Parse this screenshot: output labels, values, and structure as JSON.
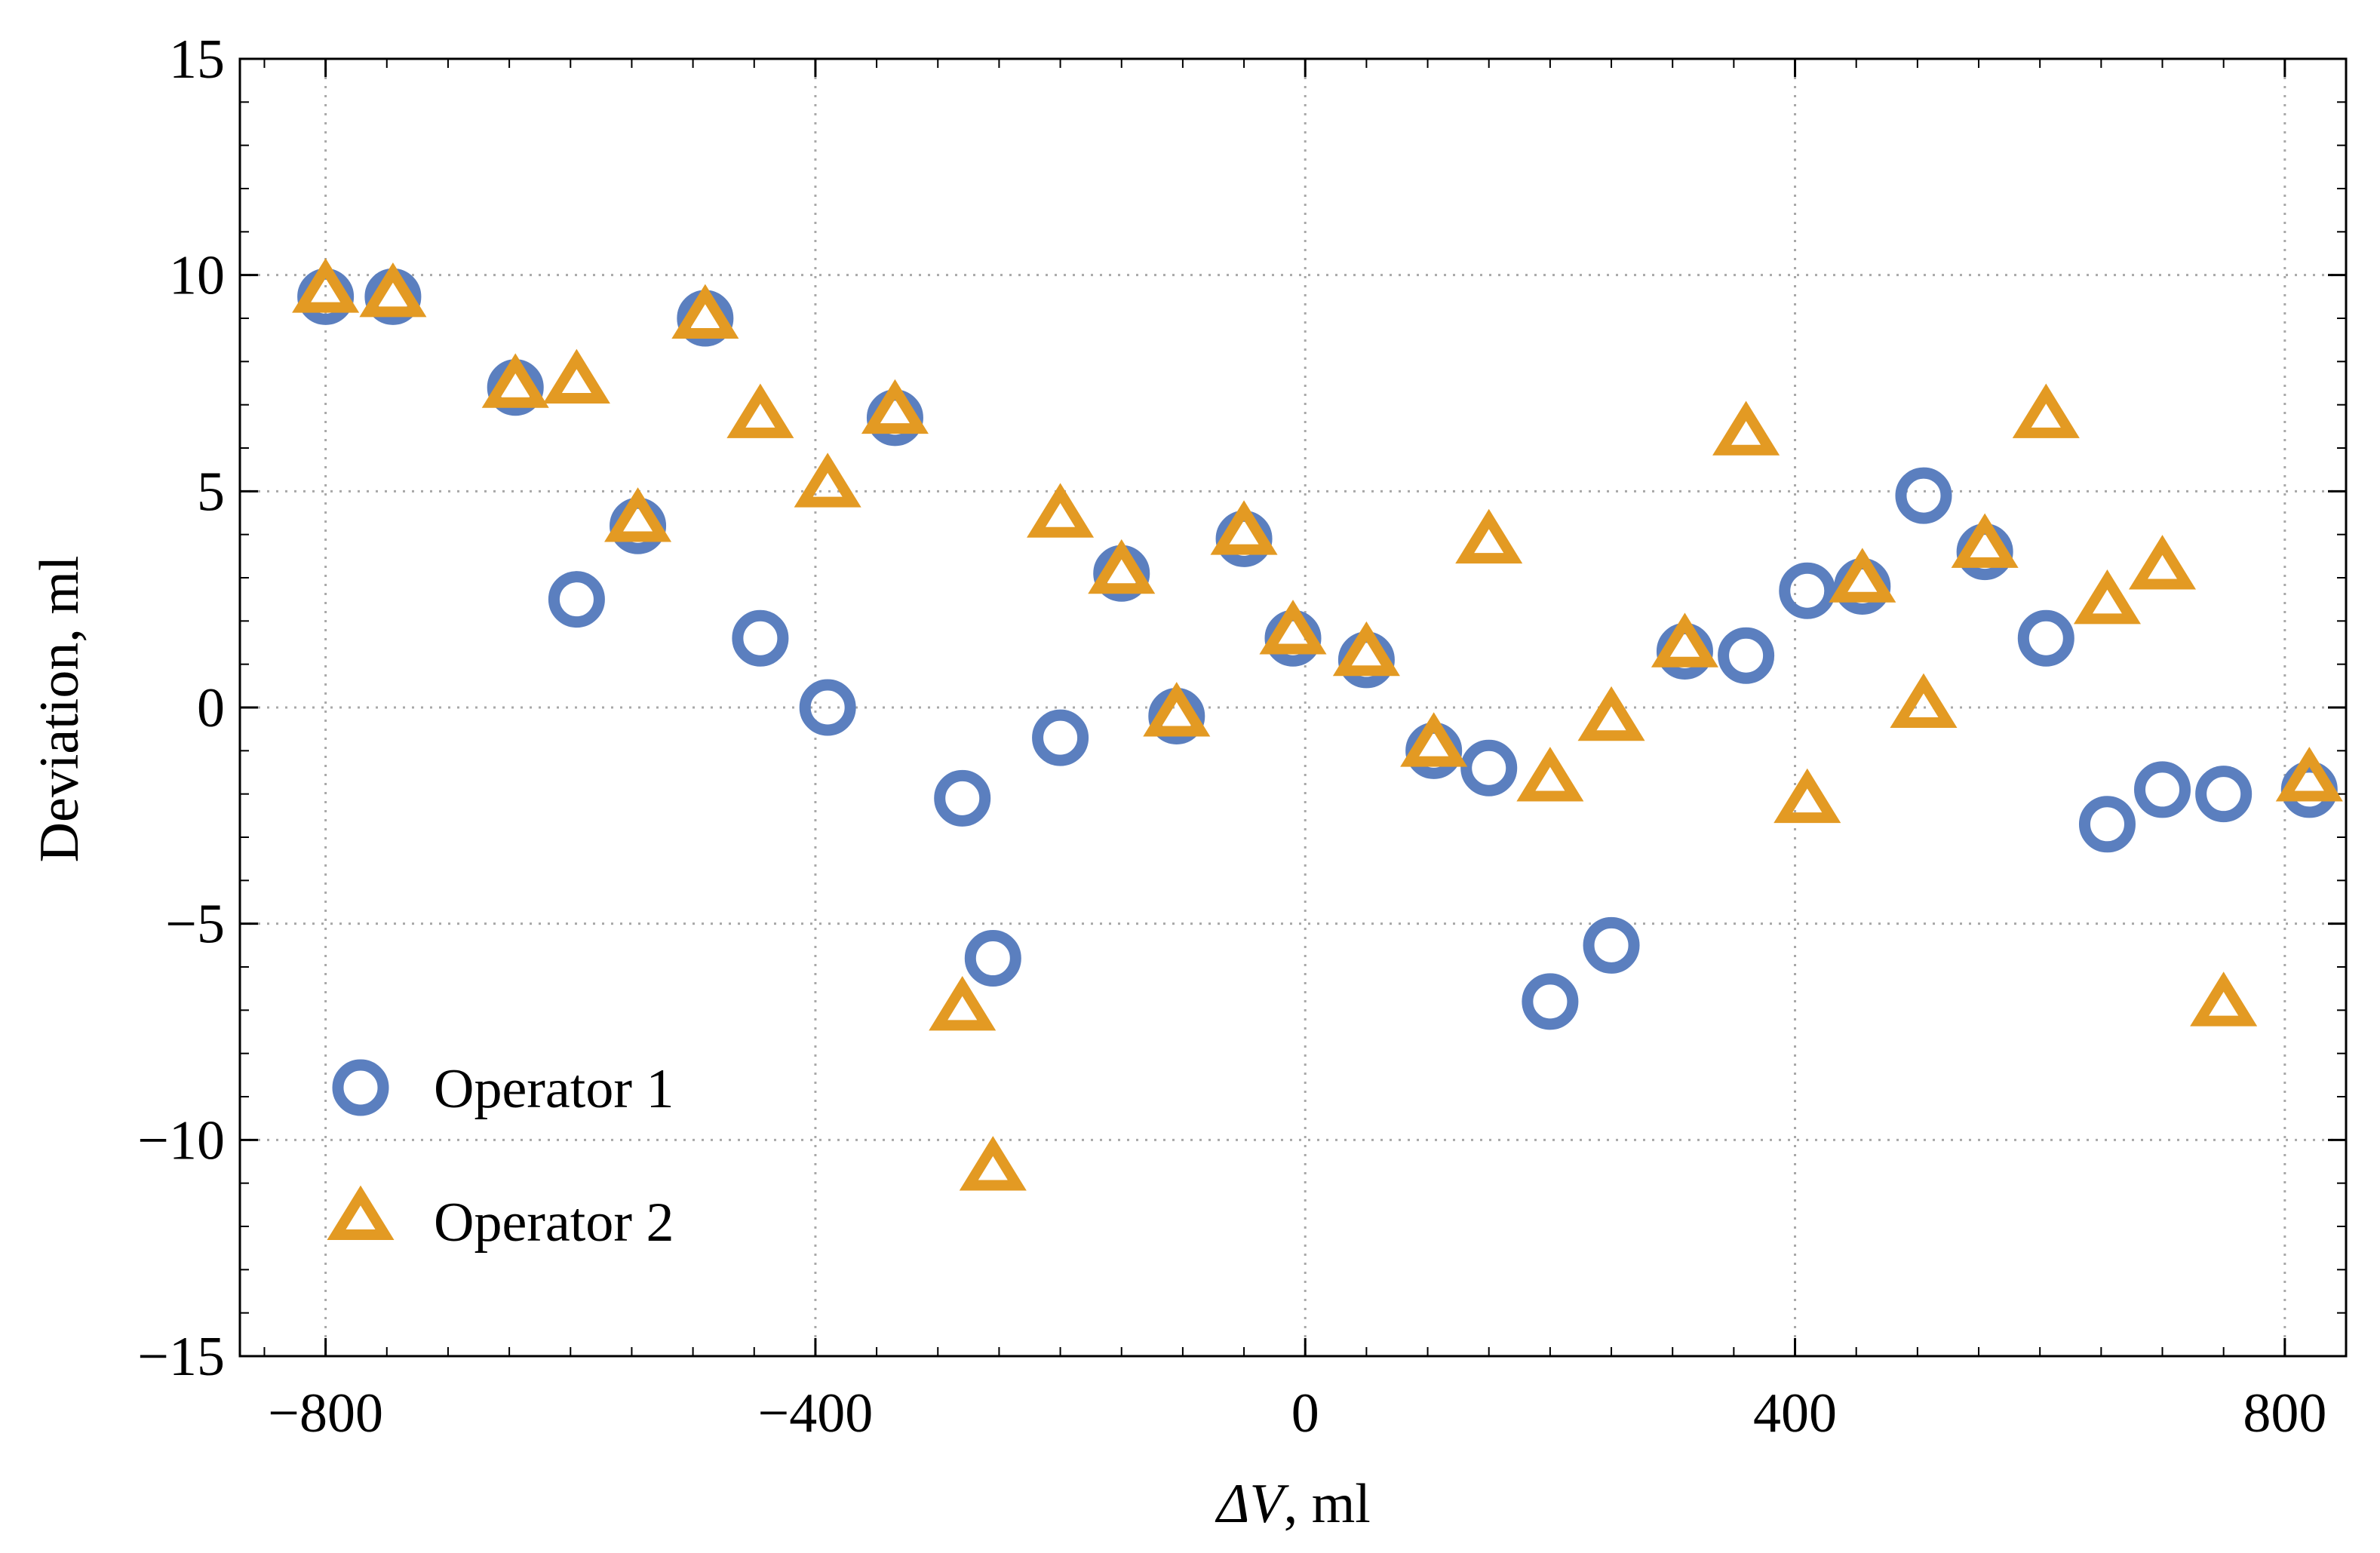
{
  "chart_data": {
    "type": "scatter",
    "title": "",
    "xlabel": "ΔV, ml",
    "xlabel_symbol": "ΔV",
    "xlabel_unit": ", ml",
    "ylabel": "Deviation, ml",
    "xlim": [
      -870,
      850
    ],
    "ylim": [
      -15,
      15
    ],
    "xticks": [
      -800,
      -400,
      0,
      400,
      800
    ],
    "xtick_labels": [
      "−800",
      "−400",
      "0",
      "400",
      "800"
    ],
    "yticks": [
      -15,
      -10,
      -5,
      0,
      5,
      10,
      15
    ],
    "ytick_labels": [
      "−15",
      "−10",
      "−5",
      "0",
      "5",
      "10",
      "15"
    ],
    "grid": true,
    "legend_position": "bottom-left",
    "series": [
      {
        "name": "Operator 1",
        "marker": "circle",
        "color": "#5b7fbf",
        "points": [
          [
            -800,
            9.5
          ],
          [
            -745,
            9.5
          ],
          [
            -645,
            7.4
          ],
          [
            -595,
            2.5
          ],
          [
            -545,
            4.2
          ],
          [
            -490,
            9.0
          ],
          [
            -445,
            1.6
          ],
          [
            -390,
            0.0
          ],
          [
            -335,
            6.7
          ],
          [
            -280,
            -2.1
          ],
          [
            -255,
            -5.8
          ],
          [
            -200,
            -0.7
          ],
          [
            -150,
            3.1
          ],
          [
            -105,
            -0.2
          ],
          [
            -50,
            3.9
          ],
          [
            -10,
            1.6
          ],
          [
            50,
            1.1
          ],
          [
            105,
            -1.0
          ],
          [
            150,
            -1.4
          ],
          [
            200,
            -6.8
          ],
          [
            250,
            -5.5
          ],
          [
            310,
            1.3
          ],
          [
            360,
            1.2
          ],
          [
            410,
            2.7
          ],
          [
            455,
            2.8
          ],
          [
            505,
            4.9
          ],
          [
            555,
            3.6
          ],
          [
            605,
            1.6
          ],
          [
            655,
            -2.7
          ],
          [
            700,
            -1.9
          ],
          [
            750,
            -2.0
          ],
          [
            820,
            -1.9
          ]
        ]
      },
      {
        "name": "Operator 2",
        "marker": "triangle",
        "color": "#e39a23",
        "points": [
          [
            -800,
            9.6
          ],
          [
            -745,
            9.5
          ],
          [
            -645,
            7.4
          ],
          [
            -595,
            7.5
          ],
          [
            -545,
            4.3
          ],
          [
            -490,
            9.0
          ],
          [
            -445,
            6.7
          ],
          [
            -390,
            5.1
          ],
          [
            -335,
            6.8
          ],
          [
            -280,
            -7.0
          ],
          [
            -255,
            -10.7
          ],
          [
            -200,
            4.4
          ],
          [
            -150,
            3.1
          ],
          [
            -105,
            -0.2
          ],
          [
            -50,
            4.0
          ],
          [
            -10,
            1.7
          ],
          [
            50,
            1.2
          ],
          [
            105,
            -0.9
          ],
          [
            150,
            3.8
          ],
          [
            200,
            -1.7
          ],
          [
            250,
            -0.3
          ],
          [
            310,
            1.4
          ],
          [
            360,
            6.3
          ],
          [
            410,
            -2.2
          ],
          [
            455,
            2.9
          ],
          [
            505,
            0.0
          ],
          [
            555,
            3.7
          ],
          [
            605,
            6.7
          ],
          [
            655,
            2.4
          ],
          [
            700,
            3.2
          ],
          [
            750,
            -6.9
          ],
          [
            820,
            -1.7
          ]
        ]
      }
    ]
  }
}
